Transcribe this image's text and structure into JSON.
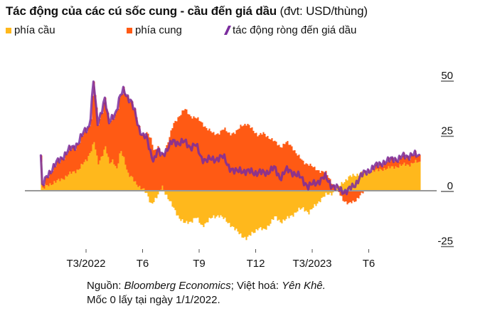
{
  "title": {
    "main": "Tác động của các cú sốc cung - cầu đến giá dầu",
    "unit": "(đvt: USD/thùng)"
  },
  "legend": [
    {
      "label": "phía cầu",
      "color": "#FFB81C",
      "kind": "square"
    },
    {
      "label": "phía cung",
      "color": "#FF5A14",
      "kind": "square"
    },
    {
      "label": "tác động ròng đến giá dầu",
      "color": "#7B2D9E",
      "kind": "line"
    }
  ],
  "footnote": {
    "source_label": "Nguồn:",
    "source": "Bloomberg Economics",
    "sep": ";",
    "translate_label": "Việt hoá:",
    "translator": "Yên Khê",
    "base_note": "Mốc 0 lấy tại ngày 1/1/2022."
  },
  "chart_data": {
    "type": "area",
    "title": "Tác động của các cú sốc cung - cầu đến giá dầu (đvt: USD/thùng)",
    "xlabel": "",
    "ylabel": "USD/thùng",
    "ylim": [
      -28,
      55
    ],
    "yticks": [
      50,
      25,
      0,
      -25
    ],
    "xticks": [
      {
        "label": "T3/2022",
        "t": 2
      },
      {
        "label": "T6",
        "t": 5
      },
      {
        "label": "T9",
        "t": 8
      },
      {
        "label": "T12",
        "t": 11
      },
      {
        "label": "T3/2023",
        "t": 14
      },
      {
        "label": "T6",
        "t": 17
      }
    ],
    "x_unit": "months since 1/1/2022",
    "legend_position": "top",
    "stacked": true,
    "t": [
      -0.4,
      0.0,
      0.4,
      0.8,
      1.2,
      1.6,
      2.0,
      2.2,
      2.4,
      2.6,
      2.8,
      3.0,
      3.2,
      3.4,
      3.6,
      3.8,
      4.0,
      4.2,
      4.4,
      4.6,
      4.8,
      5.0,
      5.2,
      5.4,
      5.6,
      5.8,
      6.0,
      6.3,
      6.6,
      6.9,
      7.2,
      7.5,
      7.8,
      8.1,
      8.4,
      8.7,
      9.0,
      9.3,
      9.6,
      9.9,
      10.2,
      10.5,
      10.8,
      11.1,
      11.4,
      11.7,
      12.0,
      12.3,
      12.6,
      12.9,
      13.2,
      13.5,
      13.8,
      14.1,
      14.4,
      14.7,
      15.0,
      15.3,
      15.6,
      15.9,
      16.2,
      16.5,
      16.8,
      17.1,
      17.4,
      17.7,
      18.0,
      18.3,
      18.6,
      18.9,
      19.2,
      19.5,
      19.7
    ],
    "series": [
      {
        "name": "phía cầu",
        "values": [
          0,
          3,
          4,
          6,
          8,
          10,
          14,
          18,
          22,
          12,
          16,
          20,
          12,
          14,
          10,
          18,
          14,
          8,
          6,
          3,
          2,
          1,
          -2,
          -6,
          -4,
          -2,
          2,
          -3,
          -8,
          -12,
          -15,
          -14,
          -12,
          -16,
          -14,
          -12,
          -11,
          -13,
          -15,
          -18,
          -20,
          -22,
          -19,
          -17,
          -18,
          -15,
          -12,
          -14,
          -13,
          -11,
          -9,
          -8,
          -10,
          -7,
          -4,
          -2,
          -1,
          1,
          4,
          6,
          7,
          8,
          8,
          9,
          9,
          10,
          10,
          11,
          11,
          12,
          12,
          13,
          13
        ]
      },
      {
        "name": "phía cung",
        "values": [
          0,
          5,
          8,
          10,
          11,
          12,
          14,
          12,
          28,
          18,
          20,
          22,
          18,
          20,
          26,
          24,
          32,
          35,
          34,
          32,
          27,
          24,
          26,
          24,
          18,
          20,
          14,
          22,
          30,
          34,
          37,
          34,
          33,
          31,
          28,
          26,
          26,
          28,
          26,
          26,
          30,
          30,
          28,
          25,
          26,
          24,
          22,
          20,
          22,
          20,
          16,
          13,
          12,
          10,
          9,
          8,
          4,
          0,
          -4,
          -6,
          -5,
          -2,
          0,
          1,
          2,
          3,
          3,
          4,
          3,
          4,
          4,
          3,
          3
        ]
      },
      {
        "name": "tác động ròng đến giá dầu",
        "values": [
          0,
          8,
          12,
          16,
          19,
          22,
          28,
          30,
          50,
          30,
          36,
          42,
          30,
          34,
          36,
          42,
          46,
          43,
          40,
          35,
          29,
          25,
          24,
          18,
          14,
          18,
          16,
          19,
          22,
          22,
          22,
          20,
          21,
          15,
          14,
          14,
          15,
          15,
          11,
          8,
          10,
          8,
          9,
          8,
          8,
          9,
          10,
          6,
          9,
          9,
          7,
          5,
          2,
          3,
          5,
          6,
          3,
          1,
          0,
          0,
          2,
          6,
          8,
          10,
          11,
          13,
          13,
          15,
          14,
          16,
          16,
          16,
          16
        ]
      }
    ]
  }
}
